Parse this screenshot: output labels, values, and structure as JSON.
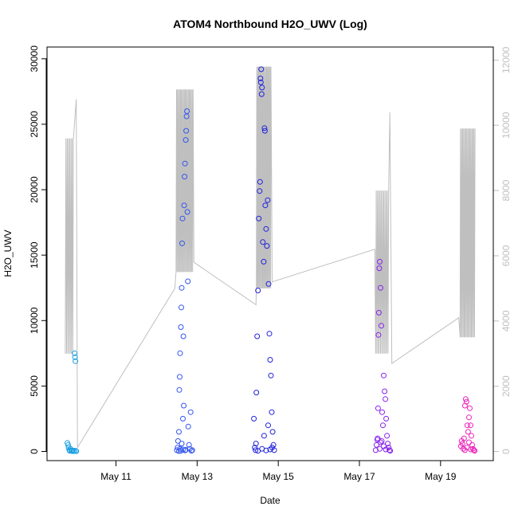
{
  "chart_data": {
    "type": "scatter",
    "title": "ATOM4 Northbound H2O_UWV (Log)",
    "xlabel": "Date",
    "ylabel": "H2O_UWV",
    "x_ticks": [
      "May 11",
      "May 13",
      "May 15",
      "May 17",
      "May 19"
    ],
    "x_tick_days": [
      11,
      13,
      15,
      17,
      19
    ],
    "x_range_days": [
      9.3,
      20.3
    ],
    "y_ticks": [
      0,
      5000,
      10000,
      15000,
      20000,
      25000,
      30000
    ],
    "ylim": [
      -700,
      30900
    ],
    "y2_ticks": [
      0,
      2000,
      4000,
      6000,
      8000,
      10000,
      12000
    ],
    "y2lim": [
      -280,
      12400
    ],
    "line_color": "#bfbfbf",
    "grid": false,
    "series": [
      {
        "color": "#1a9fe0",
        "points": [
          [
            9.8,
            650
          ],
          [
            9.82,
            500
          ],
          [
            9.83,
            300
          ],
          [
            9.85,
            100
          ],
          [
            9.86,
            50
          ],
          [
            9.88,
            200
          ],
          [
            9.9,
            80
          ],
          [
            9.92,
            30
          ],
          [
            9.95,
            20
          ],
          [
            9.97,
            60
          ],
          [
            9.98,
            7500
          ],
          [
            9.99,
            7200
          ],
          [
            10.0,
            6900
          ],
          [
            10.01,
            40
          ],
          [
            10.02,
            20
          ]
        ]
      },
      {
        "color": "#3355ee",
        "points": [
          [
            12.5,
            100
          ],
          [
            12.52,
            300
          ],
          [
            12.53,
            800
          ],
          [
            12.55,
            1500
          ],
          [
            12.56,
            4700
          ],
          [
            12.57,
            5700
          ],
          [
            12.58,
            7500
          ],
          [
            12.6,
            9500
          ],
          [
            12.61,
            11000
          ],
          [
            12.62,
            12500
          ],
          [
            12.63,
            15900
          ],
          [
            12.64,
            17800
          ],
          [
            12.65,
            2500
          ],
          [
            12.66,
            8800
          ],
          [
            12.67,
            3500
          ],
          [
            12.68,
            18800
          ],
          [
            12.69,
            21000
          ],
          [
            12.7,
            22000
          ],
          [
            12.72,
            23800
          ],
          [
            12.73,
            24500
          ],
          [
            12.74,
            25600
          ],
          [
            12.75,
            26000
          ],
          [
            12.76,
            18300
          ],
          [
            12.77,
            13000
          ],
          [
            12.78,
            1900
          ],
          [
            12.8,
            500
          ],
          [
            12.82,
            200
          ],
          [
            12.84,
            3000
          ],
          [
            12.86,
            50
          ],
          [
            12.88,
            100
          ],
          [
            12.6,
            50
          ],
          [
            12.65,
            150
          ],
          [
            12.7,
            80
          ],
          [
            12.55,
            30
          ],
          [
            12.58,
            200
          ],
          [
            12.62,
            600
          ],
          [
            12.72,
            120
          ]
        ]
      },
      {
        "color": "#2222dd",
        "points": [
          [
            14.4,
            2500
          ],
          [
            14.42,
            300
          ],
          [
            14.44,
            100
          ],
          [
            14.46,
            4500
          ],
          [
            14.48,
            8800
          ],
          [
            14.5,
            12300
          ],
          [
            14.52,
            17800
          ],
          [
            14.54,
            19900
          ],
          [
            14.55,
            20600
          ],
          [
            14.56,
            28500
          ],
          [
            14.57,
            28200
          ],
          [
            14.58,
            29200
          ],
          [
            14.59,
            27300
          ],
          [
            14.6,
            27800
          ],
          [
            14.62,
            16000
          ],
          [
            14.64,
            14500
          ],
          [
            14.66,
            24700
          ],
          [
            14.67,
            24500
          ],
          [
            14.68,
            18800
          ],
          [
            14.7,
            17000
          ],
          [
            14.72,
            15700
          ],
          [
            14.74,
            19200
          ],
          [
            14.76,
            12800
          ],
          [
            14.78,
            9000
          ],
          [
            14.8,
            7000
          ],
          [
            14.82,
            5800
          ],
          [
            14.84,
            3000
          ],
          [
            14.86,
            1500
          ],
          [
            14.88,
            500
          ],
          [
            14.9,
            100
          ],
          [
            14.5,
            50
          ],
          [
            14.6,
            200
          ],
          [
            14.7,
            80
          ],
          [
            14.8,
            150
          ],
          [
            14.45,
            600
          ],
          [
            14.65,
            1200
          ],
          [
            14.75,
            2000
          ],
          [
            14.85,
            300
          ]
        ]
      },
      {
        "color": "#8822ee",
        "points": [
          [
            17.4,
            100
          ],
          [
            17.42,
            500
          ],
          [
            17.44,
            900
          ],
          [
            17.46,
            3300
          ],
          [
            17.47,
            8900
          ],
          [
            17.48,
            10600
          ],
          [
            17.49,
            14000
          ],
          [
            17.5,
            14500
          ],
          [
            17.52,
            12500
          ],
          [
            17.54,
            9600
          ],
          [
            17.56,
            3000
          ],
          [
            17.58,
            2000
          ],
          [
            17.6,
            5800
          ],
          [
            17.62,
            4600
          ],
          [
            17.64,
            4000
          ],
          [
            17.66,
            2500
          ],
          [
            17.68,
            1200
          ],
          [
            17.7,
            600
          ],
          [
            17.72,
            300
          ],
          [
            17.74,
            100
          ],
          [
            17.76,
            50
          ],
          [
            17.5,
            200
          ],
          [
            17.55,
            800
          ],
          [
            17.6,
            400
          ],
          [
            17.65,
            150
          ],
          [
            17.45,
            1000
          ],
          [
            17.52,
            700
          ]
        ]
      },
      {
        "color": "#ee22bb",
        "points": [
          [
            19.5,
            400
          ],
          [
            19.52,
            800
          ],
          [
            19.54,
            600
          ],
          [
            19.56,
            200
          ],
          [
            19.58,
            1000
          ],
          [
            19.6,
            3500
          ],
          [
            19.62,
            4000
          ],
          [
            19.64,
            3800
          ],
          [
            19.66,
            2000
          ],
          [
            19.68,
            1500
          ],
          [
            19.7,
            2600
          ],
          [
            19.72,
            3300
          ],
          [
            19.74,
            2000
          ],
          [
            19.76,
            1200
          ],
          [
            19.78,
            500
          ],
          [
            19.8,
            200
          ],
          [
            19.82,
            100
          ],
          [
            19.84,
            50
          ],
          [
            19.6,
            100
          ],
          [
            19.65,
            300
          ],
          [
            19.7,
            700
          ],
          [
            19.75,
            150
          ]
        ]
      }
    ]
  }
}
